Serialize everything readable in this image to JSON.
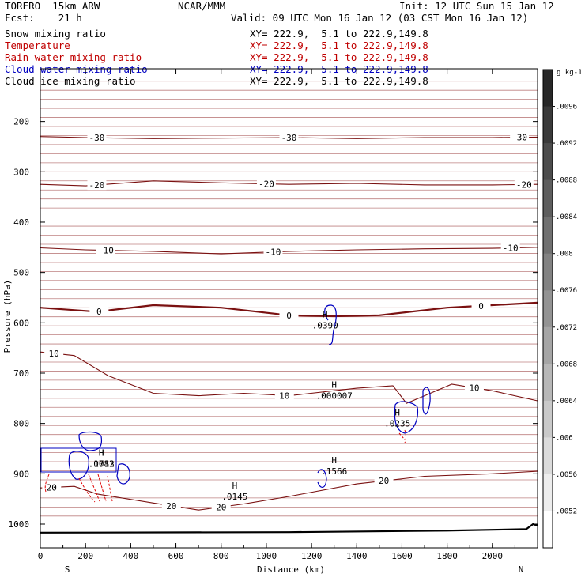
{
  "header": {
    "model": "TORERO  15km ARW",
    "center": "NCAR/MMM",
    "init": "Init: 12 UTC Sun 15 Jan 12",
    "fcst": "Fcst:    21 h",
    "valid": "Valid: 09 UTC Mon 16 Jan 12 (03 CST Mon 16 Jan 12)"
  },
  "fields": [
    {
      "label": "Snow mixing ratio",
      "xy": "XY= 222.9,  5.1 to 222.9,149.8",
      "color": "#000000"
    },
    {
      "label": "Temperature",
      "xy": "XY= 222.9,  5.1 to 222.9,149.8",
      "color": "#c00000"
    },
    {
      "label": "Rain water mixing ratio",
      "xy": "XY= 222.9,  5.1 to 222.9,149.8",
      "color": "#c00000"
    },
    {
      "label": "Cloud water mixing ratio",
      "xy": "XY= 222.9,  5.1 to 222.9,149.8",
      "color": "#0000c0"
    },
    {
      "label": "Cloud ice mixing ratio",
      "xy": "XY= 222.9,  5.1 to 222.9,149.8",
      "color": "#000000"
    }
  ],
  "chart_data": {
    "type": "line",
    "xlabel": "Distance (km)",
    "ylabel": "Pressure (hPa)",
    "xlim": [
      0,
      2200
    ],
    "ylim": [
      1000,
      100
    ],
    "x_ticks": [
      0,
      200,
      400,
      600,
      800,
      1000,
      1200,
      1400,
      1600,
      1800,
      2000
    ],
    "y_ticks": [
      200,
      300,
      400,
      500,
      600,
      700,
      800,
      900,
      1000
    ],
    "x_end_labels": {
      "left": "S",
      "right": "N"
    },
    "colorbar": {
      "unit": "g kg-1",
      "ticks": [
        ".0096",
        ".0092",
        ".0088",
        ".0084",
        ".008",
        ".0076",
        ".0072",
        ".0068",
        ".0064",
        ".006",
        ".0056",
        ".0052"
      ]
    },
    "temperature_contours": [
      {
        "value": -30,
        "points": [
          [
            0,
            230
          ],
          [
            200,
            232
          ],
          [
            500,
            234
          ],
          [
            800,
            233
          ],
          [
            1100,
            232
          ],
          [
            1400,
            234
          ],
          [
            1700,
            232
          ],
          [
            2000,
            232
          ],
          [
            2200,
            231
          ]
        ],
        "labels": [
          [
            250,
            "-30"
          ],
          [
            1100,
            "-30"
          ],
          [
            2120,
            "-30"
          ]
        ]
      },
      {
        "value": -20,
        "points": [
          [
            0,
            325
          ],
          [
            200,
            328
          ],
          [
            500,
            318
          ],
          [
            800,
            322
          ],
          [
            1100,
            325
          ],
          [
            1400,
            323
          ],
          [
            1700,
            326
          ],
          [
            2000,
            326
          ],
          [
            2200,
            325
          ]
        ],
        "labels": [
          [
            250,
            "-20"
          ],
          [
            1000,
            "-20"
          ],
          [
            2140,
            "-20"
          ]
        ]
      },
      {
        "value": -10,
        "points": [
          [
            0,
            451
          ],
          [
            200,
            455
          ],
          [
            500,
            458
          ],
          [
            800,
            463
          ],
          [
            1100,
            458
          ],
          [
            1400,
            455
          ],
          [
            1700,
            453
          ],
          [
            2000,
            452
          ],
          [
            2200,
            450
          ]
        ],
        "labels": [
          [
            290,
            "-10"
          ],
          [
            1030,
            "-10"
          ],
          [
            2080,
            "-10"
          ]
        ]
      },
      {
        "value": 0,
        "points": [
          [
            0,
            570
          ],
          [
            250,
            578
          ],
          [
            500,
            565
          ],
          [
            800,
            570
          ],
          [
            1100,
            585
          ],
          [
            1300,
            587
          ],
          [
            1500,
            585
          ],
          [
            1800,
            570
          ],
          [
            2000,
            565
          ],
          [
            2200,
            560
          ]
        ],
        "labels": [
          [
            260,
            "0"
          ],
          [
            1100,
            "0"
          ],
          [
            1950,
            "0"
          ]
        ]
      },
      {
        "value": 10,
        "points": [
          [
            0,
            658
          ],
          [
            150,
            665
          ],
          [
            300,
            705
          ],
          [
            500,
            740
          ],
          [
            700,
            745
          ],
          [
            900,
            740
          ],
          [
            1100,
            745
          ],
          [
            1400,
            730
          ],
          [
            1560,
            725
          ],
          [
            1620,
            760
          ],
          [
            1700,
            745
          ],
          [
            1820,
            722
          ],
          [
            2000,
            735
          ],
          [
            2200,
            755
          ]
        ],
        "labels": [
          [
            60,
            "10"
          ],
          [
            1080,
            "10"
          ],
          [
            1920,
            "10"
          ]
        ]
      },
      {
        "value": 20,
        "points": [
          [
            0,
            928
          ],
          [
            150,
            925
          ],
          [
            250,
            940
          ],
          [
            500,
            958
          ],
          [
            700,
            972
          ],
          [
            900,
            960
          ],
          [
            1100,
            945
          ],
          [
            1400,
            920
          ],
          [
            1700,
            905
          ],
          [
            2000,
            900
          ],
          [
            2200,
            895
          ]
        ],
        "labels": [
          [
            50,
            "20"
          ],
          [
            580,
            "20"
          ],
          [
            800,
            "20"
          ],
          [
            1520,
            "20"
          ]
        ]
      }
    ],
    "extrema_labels": [
      {
        "x": 1260,
        "p": 605,
        "marker": "H",
        "value": ".0390",
        "field": "cloud water"
      },
      {
        "x": 1300,
        "p": 745,
        "marker": "H",
        "value": ".000007",
        "field": "rain water"
      },
      {
        "x": 1580,
        "p": 800,
        "marker": "H",
        "value": ".0235",
        "field": "rain water"
      },
      {
        "x": 1300,
        "p": 895,
        "marker": "H",
        "value": ".1566",
        "field": "cloud water"
      },
      {
        "x": 860,
        "p": 945,
        "marker": "H",
        "value": ".0145",
        "field": "cloud water"
      },
      {
        "x": 270,
        "p": 880,
        "marker": "H",
        "value": ".0082",
        "field": "rain water"
      },
      {
        "x": 270,
        "p": 880,
        "marker": "H",
        "value": ".1713",
        "field": "cloud water"
      }
    ]
  }
}
